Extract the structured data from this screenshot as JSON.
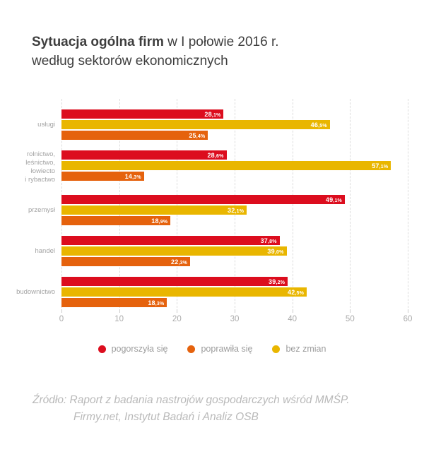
{
  "title": {
    "bold": "Sytuacja ogólna firm",
    "rest": " w I połowie 2016 r.",
    "line2": "według sektorów ekonomicznych"
  },
  "chart_data": {
    "type": "bar",
    "orientation": "horizontal",
    "categories": [
      "usługi",
      "rolnictwo,\nleśnictwo, łowiecto\ni rybactwo",
      "przemysł",
      "handel",
      "budownictwo"
    ],
    "series": [
      {
        "name": "pogorszyła się",
        "key": "pogorszyla-sie",
        "color": "#DC0D1E",
        "values": [
          28.1,
          28.6,
          49.1,
          37.8,
          39.2
        ],
        "labels": [
          "28,1%",
          "28,6%",
          "49,1%",
          "37,8%",
          "39,2%"
        ]
      },
      {
        "name": "bez zmian",
        "key": "bez-zmian",
        "color": "#E9B600",
        "values": [
          46.5,
          57.1,
          32.1,
          39.0,
          42.5
        ],
        "labels": [
          "46,5%",
          "57,1%",
          "32,1%",
          "39,0%",
          "42,5%"
        ]
      },
      {
        "name": "poprawiła się",
        "key": "poprawila-sie",
        "color": "#E5620D",
        "values": [
          25.4,
          14.3,
          18.9,
          22.3,
          18.3
        ],
        "labels": [
          "25,4%",
          "14,3%",
          "18,9%",
          "22,3%",
          "18,3%"
        ]
      }
    ],
    "xlim": [
      0,
      60
    ],
    "xticks": [
      "0",
      "10",
      "20",
      "30",
      "40",
      "50",
      "60"
    ],
    "grid": "vertical-dashed",
    "legend_position": "bottom",
    "value_label_position": "inside-end"
  },
  "legend": [
    {
      "label": "pogorszyła się",
      "key": "pogorszyla-sie",
      "color": "#DC0D1E"
    },
    {
      "label": "poprawiła się",
      "key": "poprawila-sie",
      "color": "#E5620D"
    },
    {
      "label": "bez zmian",
      "key": "bez-zmian",
      "color": "#E9B600"
    }
  ],
  "source": {
    "line1": "Źródło: Raport z badania nastrojów gospodarczych wśród MMŚP.",
    "line2": "Firmy.net, Instytut Badań i Analiz OSB"
  }
}
